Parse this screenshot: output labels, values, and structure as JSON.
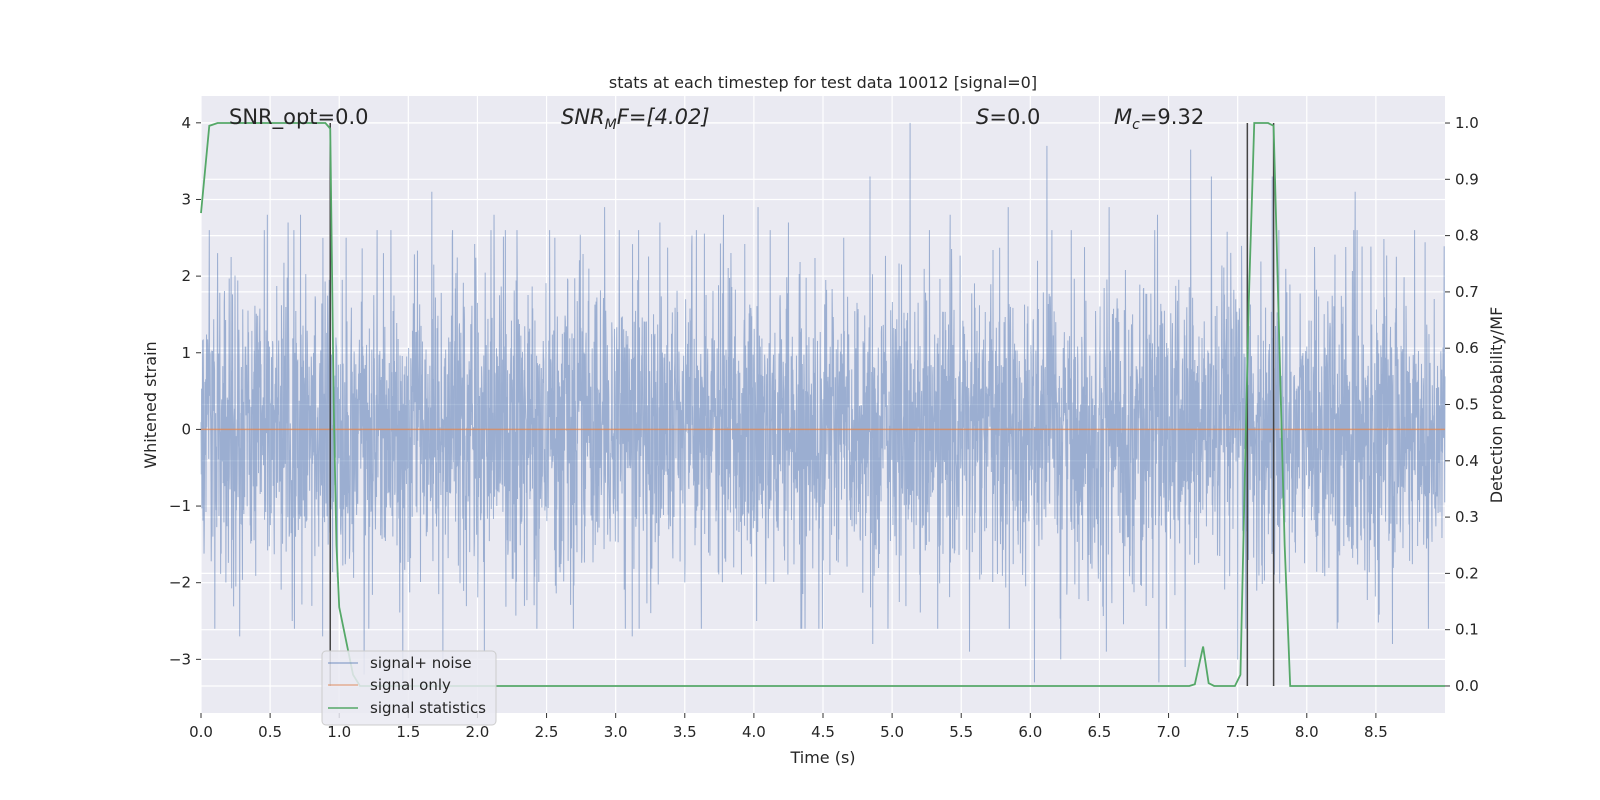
{
  "chart_data": {
    "type": "line",
    "title": "stats at each timestep for test data 10012 [signal=0]",
    "xlabel": "Time (s)",
    "ylabel": "Whitened strain",
    "ylabel_right": "Detection probability/MF",
    "xlim": [
      0.0,
      9.0
    ],
    "ylim": [
      -3.7,
      4.35
    ],
    "ylim_right": [
      -0.048,
      1.048
    ],
    "x_ticks": [
      0.0,
      0.5,
      1.0,
      1.5,
      2.0,
      2.5,
      3.0,
      3.5,
      4.0,
      4.5,
      5.0,
      5.5,
      6.0,
      6.5,
      7.0,
      7.5,
      8.0,
      8.5
    ],
    "x_tick_labels": [
      "0.0",
      "0.5",
      "1.0",
      "1.5",
      "2.0",
      "2.5",
      "3.0",
      "3.5",
      "4.0",
      "4.5",
      "5.0",
      "5.5",
      "6.0",
      "6.5",
      "7.0",
      "7.5",
      "8.0",
      "8.5"
    ],
    "y_ticks": [
      4,
      3,
      2,
      1,
      0,
      -1,
      -2,
      -3
    ],
    "y_tick_labels": [
      "4",
      "3",
      "2",
      "1",
      "0",
      "−1",
      "−2",
      "−3"
    ],
    "y_right_ticks": [
      1.0,
      0.9,
      0.8,
      0.7,
      0.6,
      0.5,
      0.4,
      0.3,
      0.2,
      0.1,
      0.0
    ],
    "y_right_tick_labels": [
      "1.0",
      "0.9",
      "0.8",
      "0.7",
      "0.6",
      "0.5",
      "0.4",
      "0.3",
      "0.2",
      "0.1",
      "0.0"
    ],
    "grid": true,
    "legend_position": "lower-left",
    "annotations": {
      "snr_opt": "SNR_opt=0.0",
      "snr_mf_main": "SNR",
      "snr_mf_sub": "M",
      "snr_mf_rest": "F=[4.02]",
      "s_main": "S",
      "s_rest": "=0.0",
      "mc_main": "M",
      "mc_sub": "c",
      "mc_rest": "=9.32"
    },
    "series": [
      {
        "name": "signal+ noise",
        "color": "#4c72b0",
        "axis": "left",
        "style": "dense noise, amplitude roughly within ±2, peaks near 4.0",
        "peaks": [
          [
            0.06,
            2.6
          ],
          [
            0.12,
            2.3
          ],
          [
            0.28,
            2.5
          ],
          [
            0.48,
            2.8
          ],
          [
            0.63,
            2.7
          ],
          [
            0.72,
            2.8
          ],
          [
            1.05,
            2.5
          ],
          [
            1.32,
            2.3
          ],
          [
            1.67,
            3.1
          ],
          [
            1.82,
            2.6
          ],
          [
            2.12,
            2.8
          ],
          [
            2.56,
            2.5
          ],
          [
            2.92,
            2.9
          ],
          [
            3.32,
            2.7
          ],
          [
            3.55,
            2.4
          ],
          [
            3.78,
            2.8
          ],
          [
            4.03,
            2.9
          ],
          [
            4.25,
            2.7
          ],
          [
            4.65,
            2.5
          ],
          [
            4.84,
            3.3
          ],
          [
            5.13,
            4.0
          ],
          [
            5.42,
            2.8
          ],
          [
            5.84,
            2.9
          ],
          [
            6.12,
            3.7
          ],
          [
            6.57,
            2.9
          ],
          [
            6.92,
            2.8
          ],
          [
            7.16,
            3.65
          ],
          [
            7.31,
            3.3
          ],
          [
            7.75,
            3.3
          ],
          [
            8.35,
            3.1
          ],
          [
            8.78,
            2.6
          ]
        ],
        "troughs": [
          [
            0.1,
            -2.6
          ],
          [
            0.28,
            -2.7
          ],
          [
            0.66,
            -2.5
          ],
          [
            0.88,
            -2.7
          ],
          [
            1.18,
            -3.2
          ],
          [
            1.46,
            -3.3
          ],
          [
            1.75,
            -3.0
          ],
          [
            2.05,
            -2.9
          ],
          [
            2.43,
            -2.6
          ],
          [
            3.12,
            -2.7
          ],
          [
            3.62,
            -2.6
          ],
          [
            4.02,
            -2.5
          ],
          [
            4.86,
            -2.8
          ],
          [
            5.33,
            -2.6
          ],
          [
            5.56,
            -2.9
          ],
          [
            6.03,
            -3.3
          ],
          [
            6.22,
            -3.0
          ],
          [
            6.55,
            -2.9
          ],
          [
            6.93,
            -3.3
          ],
          [
            7.12,
            -3.1
          ],
          [
            7.5,
            -3.0
          ],
          [
            8.22,
            -2.6
          ],
          [
            8.62,
            -2.8
          ],
          [
            8.88,
            -2.6
          ]
        ]
      },
      {
        "name": "signal only",
        "color": "#dd8452",
        "axis": "left",
        "x": [
          0.0,
          9.0
        ],
        "y": [
          0.0,
          0.0
        ]
      },
      {
        "name": "signal statistics",
        "color": "#55a868",
        "axis": "right",
        "x": [
          0.0,
          0.06,
          0.12,
          0.25,
          0.5,
          0.85,
          0.9,
          0.935,
          0.96,
          0.98,
          1.0,
          1.05,
          1.1,
          1.15,
          7.15,
          7.19,
          7.25,
          7.29,
          7.33,
          7.48,
          7.52,
          7.58,
          7.62,
          7.72,
          7.76,
          7.84,
          7.88,
          9.0
        ],
        "y": [
          0.84,
          0.995,
          1.0,
          1.0,
          1.0,
          1.0,
          1.0,
          0.99,
          0.5,
          0.25,
          0.14,
          0.08,
          0.02,
          0.0,
          0.0,
          0.003,
          0.07,
          0.005,
          0.0,
          0.0,
          0.02,
          0.68,
          1.0,
          1.0,
          0.995,
          0.25,
          0.0,
          0.0
        ]
      }
    ],
    "vertical_markers_x": [
      0.935,
      7.57,
      7.76
    ]
  }
}
